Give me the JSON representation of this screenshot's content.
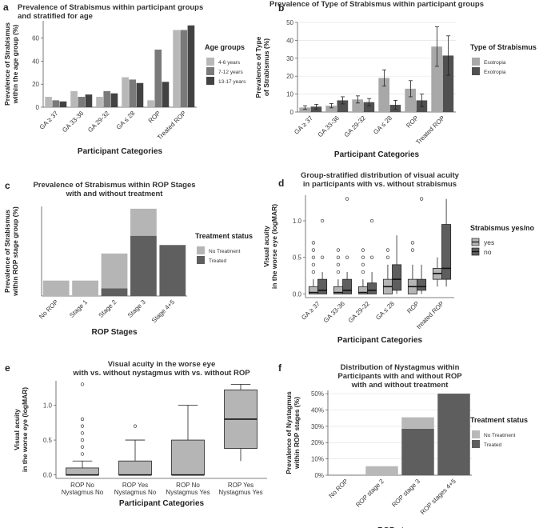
{
  "colors": {
    "light": "#b8b8b8",
    "mid": "#7a7a7a",
    "dark": "#424242",
    "box_light": "#b5b5b5",
    "box_dark": "#5e5e5e"
  },
  "panels": [
    {
      "letter": "a"
    },
    {
      "letter": "b"
    },
    {
      "letter": "c"
    },
    {
      "letter": "d"
    },
    {
      "letter": "e"
    },
    {
      "letter": "f"
    }
  ],
  "chart_data": [
    {
      "panel": "a",
      "type": "bar",
      "title": [
        "Prevalence of Strabismus within participant groups",
        "and stratified for age"
      ],
      "xlabel": "Participant Categories",
      "ylabel": [
        "Prevalence of Strabismus",
        "within the age group (%)"
      ],
      "ylim": [
        0,
        75
      ],
      "yticks": [
        0,
        20,
        40,
        60
      ],
      "categories": [
        "GA ≥ 37",
        "GA 33-36",
        "GA 29-32",
        "GA ≤ 28",
        "ROP",
        "Treated ROP"
      ],
      "legend_title": "Age groups",
      "series": [
        {
          "name": "4-6 years",
          "color": "#b8b8b8",
          "values": [
            9,
            14,
            9,
            26,
            6,
            67
          ]
        },
        {
          "name": "7-12 years",
          "color": "#7a7a7a",
          "values": [
            6,
            9,
            14,
            24,
            50,
            67
          ]
        },
        {
          "name": "13-17 years",
          "color": "#424242",
          "values": [
            5,
            11,
            12,
            21,
            22,
            71
          ]
        }
      ]
    },
    {
      "panel": "b",
      "type": "bar",
      "title": [
        "Prevalence of Type of Strabismus within participant groups"
      ],
      "xlabel": "Participant Categories",
      "ylabel": [
        "Prevalence of Type",
        "of Strabismus (%)"
      ],
      "ylim": [
        0,
        50
      ],
      "yticks": [
        0,
        10,
        20,
        30,
        40,
        50
      ],
      "categories": [
        "GA ≥ 37",
        "GA 33-36",
        "GA 29-32",
        "GA ≤ 28",
        "ROP",
        "Treated ROP"
      ],
      "legend_title": "Type of Strabismus",
      "series": [
        {
          "name": "Esotropia",
          "color": "#a8a8a8",
          "values": [
            2.5,
            3.5,
            7,
            19,
            13,
            36.5
          ],
          "err": [
            1,
            1.2,
            2,
            4.5,
            4.5,
            11
          ]
        },
        {
          "name": "Exotropia",
          "color": "#505050",
          "values": [
            3,
            6.5,
            5.5,
            4,
            6.5,
            31.5
          ],
          "err": [
            1.3,
            2,
            2,
            2.5,
            3.5,
            11
          ]
        }
      ]
    },
    {
      "panel": "c",
      "type": "bar",
      "title": [
        "Prevalence of Strabismus within ROP Stages",
        "with and without treatment"
      ],
      "xlabel": "ROP Stages",
      "ylabel": [
        "Prevalence of Strabismus",
        "within ROP stage group (%)"
      ],
      "ylim": [
        0,
        58
      ],
      "yticks": [],
      "categories": [
        "No ROP",
        "Stage 1",
        "Stage 2",
        "Stage 3",
        "Stage 4+5"
      ],
      "legend_title": "Treatment status",
      "stacked_order": [
        "Treated",
        "No Treatment"
      ],
      "series": [
        {
          "name": "No Treatment",
          "color": "#b5b5b5",
          "values": [
            10,
            10,
            22.5,
            17.5,
            0
          ]
        },
        {
          "name": "Treated",
          "color": "#5f5f5f",
          "values": [
            0,
            0,
            5,
            39,
            33
          ]
        }
      ]
    },
    {
      "panel": "d",
      "type": "box",
      "title": [
        "Group-stratified distribution of visual acuity",
        "in participants with vs. without strabismus"
      ],
      "xlabel": "Participant Categories",
      "ylabel": [
        "Visual acuity",
        "in the worse eye (logMAR)"
      ],
      "ylim": [
        -0.05,
        1.35
      ],
      "yticks": [
        0.0,
        0.5,
        1.0
      ],
      "yticklabels": [
        "0.0",
        "0.5",
        "1.0"
      ],
      "categories": [
        "GA ≥ 37",
        "GA 33-36",
        "GA 29-32",
        "GA ≤ 28",
        "ROP",
        "treated ROP"
      ],
      "legend_title": "Strabismus yes/no",
      "series": [
        {
          "name": "yes",
          "color": "#b5b5b5",
          "boxes": [
            {
              "min": 0,
              "q1": 0,
              "median": 0.02,
              "q3": 0.1,
              "max": 0.2,
              "outliers": [
                0.3,
                0.4,
                0.5,
                0.6,
                0.7
              ]
            },
            {
              "min": 0,
              "q1": 0,
              "median": 0.02,
              "q3": 0.1,
              "max": 0.2,
              "outliers": [
                0.3,
                0.4,
                0.5,
                0.6
              ]
            },
            {
              "min": 0,
              "q1": 0,
              "median": 0.02,
              "q3": 0.1,
              "max": 0.2,
              "outliers": [
                0.3,
                0.4,
                0.5,
                0.6
              ]
            },
            {
              "min": 0,
              "q1": 0,
              "median": 0.1,
              "q3": 0.2,
              "max": 0.4,
              "outliers": [
                0.5,
                0.6
              ]
            },
            {
              "min": 0,
              "q1": 0,
              "median": 0.1,
              "q3": 0.2,
              "max": 0.4,
              "outliers": [
                0.6,
                0.7
              ]
            },
            {
              "min": 0.1,
              "q1": 0.2,
              "median": 0.28,
              "q3": 0.35,
              "max": 0.5,
              "outliers": []
            }
          ]
        },
        {
          "name": "no",
          "color": "#5e5e5e",
          "boxes": [
            {
              "min": 0,
              "q1": 0,
              "median": 0.05,
              "q3": 0.2,
              "max": 0.3,
              "outliers": [
                0.5,
                1.0
              ]
            },
            {
              "min": 0,
              "q1": 0,
              "median": 0.05,
              "q3": 0.2,
              "max": 0.3,
              "outliers": [
                0.5,
                1.3
              ]
            },
            {
              "min": 0,
              "q1": 0,
              "median": 0.05,
              "q3": 0.15,
              "max": 0.3,
              "outliers": [
                0.5,
                1.0
              ]
            },
            {
              "min": 0,
              "q1": 0.05,
              "median": 0.2,
              "q3": 0.4,
              "max": 0.8,
              "outliers": []
            },
            {
              "min": 0,
              "q1": 0.05,
              "median": 0.1,
              "q3": 0.2,
              "max": 0.4,
              "outliers": [
                1.3
              ]
            },
            {
              "min": 0.1,
              "q1": 0.2,
              "median": 0.35,
              "q3": 0.95,
              "max": 1.3,
              "outliers": []
            }
          ]
        }
      ]
    },
    {
      "panel": "e",
      "type": "box",
      "title": [
        "Visual acuity in the worse eye",
        "with vs. without nystagmus with vs. without ROP"
      ],
      "xlabel": "Participant Categories",
      "ylabel": [
        "Visual acuity",
        "in the worse eye (logMAR)"
      ],
      "ylim": [
        -0.05,
        1.35
      ],
      "yticks": [
        0.0,
        0.5,
        1.0
      ],
      "yticklabels": [
        "0.0",
        "0.5",
        "1.0"
      ],
      "categories": [
        [
          "ROP No",
          "Nystagmus No"
        ],
        [
          "ROP Yes",
          "Nystagmus No"
        ],
        [
          "ROP No",
          "Nystagmus Yes"
        ],
        [
          "ROP Yes",
          "Nystagmus Yes"
        ]
      ],
      "series": [
        {
          "name": "",
          "color": "#b5b5b5",
          "boxes": [
            {
              "min": 0,
              "q1": 0,
              "median": 0.0,
              "q3": 0.1,
              "max": 0.2,
              "outliers": [
                0.3,
                0.4,
                0.5,
                0.6,
                0.7,
                0.8,
                1.3
              ]
            },
            {
              "min": 0,
              "q1": 0,
              "median": 0.0,
              "q3": 0.2,
              "max": 0.5,
              "outliers": [
                0.7
              ]
            },
            {
              "min": 0,
              "q1": 0,
              "median": 0.0,
              "q3": 0.5,
              "max": 1.0,
              "outliers": []
            },
            {
              "min": 0.2,
              "q1": 0.38,
              "median": 0.8,
              "q3": 1.22,
              "max": 1.3,
              "outliers": []
            }
          ]
        }
      ]
    },
    {
      "panel": "f",
      "type": "bar",
      "title": [
        "Distribution of Nystagmus within",
        "Participants with and without ROP",
        "with and without treatment"
      ],
      "xlabel": "ROP stages",
      "ylabel": [
        "Prevalence of Nystagmus",
        "within ROP stages (%)"
      ],
      "ylim": [
        0,
        0.52
      ],
      "yticks": [
        0,
        0.1,
        0.2,
        0.3,
        0.4,
        0.5
      ],
      "yticklabels": [
        "0%",
        "10%",
        "20%",
        "30%",
        "40%",
        "50%"
      ],
      "categories": [
        "No ROP",
        "ROP stage 2",
        "ROP stage 3",
        "ROP stages 4+5"
      ],
      "legend_title": "Treatment status",
      "stacked_order": [
        "Treated",
        "No Treatment"
      ],
      "series": [
        {
          "name": "No Treatment",
          "color": "#b8b8b8",
          "values": [
            0.005,
            0.055,
            0.07,
            0
          ]
        },
        {
          "name": "Treated",
          "color": "#5e5e5e",
          "values": [
            0,
            0,
            0.285,
            0.5
          ]
        }
      ]
    }
  ]
}
